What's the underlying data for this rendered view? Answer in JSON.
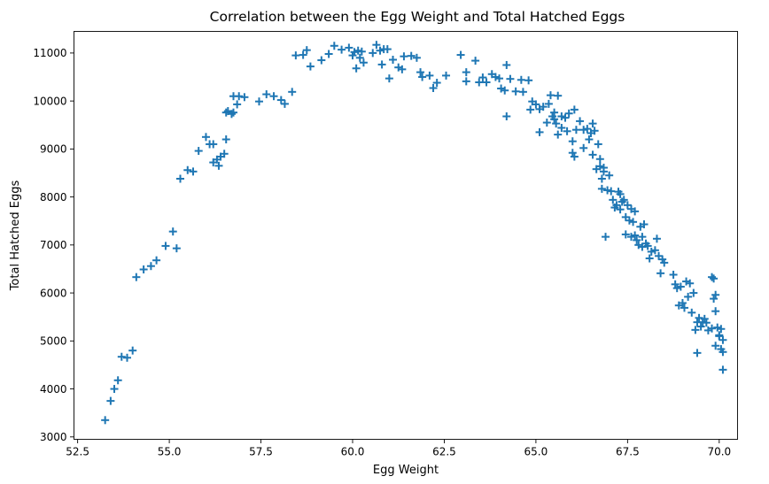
{
  "chart_data": {
    "type": "scatter",
    "title": "Correlation between the Egg Weight and Total Hatched Eggs",
    "xlabel": "Egg Weight",
    "ylabel": "Total Hatched Eggs",
    "marker": "+",
    "color": "#1f77b4",
    "grid": false,
    "legend": false,
    "xlim": [
      52.4,
      70.5
    ],
    "ylim": [
      2950,
      11450
    ],
    "xticks": [
      52.5,
      55.0,
      57.5,
      60.0,
      62.5,
      65.0,
      67.5,
      70.0
    ],
    "xtick_labels": [
      "52.5",
      "55.0",
      "57.5",
      "60.0",
      "62.5",
      "65.0",
      "67.5",
      "70.0"
    ],
    "yticks": [
      3000,
      4000,
      5000,
      6000,
      7000,
      8000,
      9000,
      10000,
      11000
    ],
    "ytick_labels": [
      "3000",
      "4000",
      "5000",
      "6000",
      "7000",
      "8000",
      "9000",
      "10000",
      "11000"
    ],
    "points": [
      [
        53.25,
        3350
      ],
      [
        53.4,
        3750
      ],
      [
        53.5,
        4000
      ],
      [
        53.6,
        4180
      ],
      [
        53.7,
        4670
      ],
      [
        53.85,
        4650
      ],
      [
        54.0,
        4800
      ],
      [
        54.1,
        6330
      ],
      [
        54.3,
        6490
      ],
      [
        54.5,
        6560
      ],
      [
        54.65,
        6680
      ],
      [
        54.9,
        6980
      ],
      [
        55.1,
        7280
      ],
      [
        55.2,
        6930
      ],
      [
        55.3,
        8380
      ],
      [
        55.5,
        8560
      ],
      [
        55.65,
        8530
      ],
      [
        55.8,
        8960
      ],
      [
        56.0,
        9250
      ],
      [
        56.1,
        9100
      ],
      [
        56.2,
        9100
      ],
      [
        56.2,
        8720
      ],
      [
        56.3,
        8780
      ],
      [
        56.35,
        8650
      ],
      [
        56.4,
        8840
      ],
      [
        56.5,
        8900
      ],
      [
        56.55,
        9200
      ],
      [
        56.55,
        9760
      ],
      [
        56.6,
        9790
      ],
      [
        56.7,
        9730
      ],
      [
        56.75,
        9760
      ],
      [
        56.75,
        10100
      ],
      [
        56.85,
        9930
      ],
      [
        56.9,
        10100
      ],
      [
        57.05,
        10080
      ],
      [
        57.45,
        9990
      ],
      [
        57.65,
        10140
      ],
      [
        57.85,
        10100
      ],
      [
        58.05,
        10020
      ],
      [
        58.15,
        9940
      ],
      [
        58.35,
        10190
      ],
      [
        58.45,
        10950
      ],
      [
        58.65,
        10960
      ],
      [
        58.75,
        11060
      ],
      [
        58.85,
        10720
      ],
      [
        59.15,
        10850
      ],
      [
        59.35,
        10980
      ],
      [
        59.5,
        11150
      ],
      [
        59.7,
        11070
      ],
      [
        59.9,
        11110
      ],
      [
        60.0,
        10950
      ],
      [
        60.05,
        11020
      ],
      [
        60.1,
        10680
      ],
      [
        60.15,
        11050
      ],
      [
        60.2,
        10900
      ],
      [
        60.25,
        11030
      ],
      [
        60.3,
        10800
      ],
      [
        60.55,
        11000
      ],
      [
        60.65,
        11170
      ],
      [
        60.75,
        11050
      ],
      [
        60.8,
        10760
      ],
      [
        60.85,
        11080
      ],
      [
        60.95,
        11080
      ],
      [
        61.0,
        10470
      ],
      [
        61.1,
        10860
      ],
      [
        61.25,
        10700
      ],
      [
        61.35,
        10660
      ],
      [
        61.4,
        10930
      ],
      [
        61.6,
        10940
      ],
      [
        61.75,
        10900
      ],
      [
        61.85,
        10600
      ],
      [
        61.9,
        10500
      ],
      [
        62.1,
        10530
      ],
      [
        62.2,
        10270
      ],
      [
        62.3,
        10380
      ],
      [
        62.55,
        10530
      ],
      [
        62.95,
        10960
      ],
      [
        63.1,
        10600
      ],
      [
        63.1,
        10410
      ],
      [
        63.35,
        10840
      ],
      [
        63.45,
        10390
      ],
      [
        63.55,
        10490
      ],
      [
        63.65,
        10390
      ],
      [
        63.8,
        10560
      ],
      [
        63.9,
        10500
      ],
      [
        64.0,
        10470
      ],
      [
        64.05,
        10260
      ],
      [
        64.15,
        10220
      ],
      [
        64.2,
        9680
      ],
      [
        64.2,
        10750
      ],
      [
        64.3,
        10460
      ],
      [
        64.45,
        10200
      ],
      [
        64.6,
        10440
      ],
      [
        64.65,
        10190
      ],
      [
        64.8,
        10430
      ],
      [
        64.85,
        9820
      ],
      [
        64.9,
        9990
      ],
      [
        65.0,
        9930
      ],
      [
        65.1,
        9350
      ],
      [
        65.1,
        9830
      ],
      [
        65.2,
        9880
      ],
      [
        65.3,
        9550
      ],
      [
        65.35,
        9940
      ],
      [
        65.4,
        10120
      ],
      [
        65.45,
        9680
      ],
      [
        65.5,
        9760
      ],
      [
        65.5,
        9620
      ],
      [
        65.55,
        9530
      ],
      [
        65.6,
        9300
      ],
      [
        65.6,
        10110
      ],
      [
        65.7,
        9680
      ],
      [
        65.7,
        9440
      ],
      [
        65.8,
        9650
      ],
      [
        65.85,
        9370
      ],
      [
        65.9,
        9740
      ],
      [
        66.0,
        9160
      ],
      [
        66.0,
        8920
      ],
      [
        66.05,
        8840
      ],
      [
        66.05,
        9820
      ],
      [
        66.1,
        9400
      ],
      [
        66.2,
        9580
      ],
      [
        66.3,
        9400
      ],
      [
        66.3,
        9020
      ],
      [
        66.4,
        9420
      ],
      [
        66.45,
        9200
      ],
      [
        66.5,
        9330
      ],
      [
        66.55,
        9530
      ],
      [
        66.55,
        8880
      ],
      [
        66.6,
        9380
      ],
      [
        66.65,
        8580
      ],
      [
        66.7,
        9100
      ],
      [
        66.75,
        8640
      ],
      [
        66.75,
        8790
      ],
      [
        66.8,
        8380
      ],
      [
        66.8,
        8170
      ],
      [
        66.85,
        8610
      ],
      [
        66.85,
        8530
      ],
      [
        66.9,
        7170
      ],
      [
        66.95,
        8140
      ],
      [
        67.0,
        8450
      ],
      [
        67.05,
        8120
      ],
      [
        67.1,
        7940
      ],
      [
        67.15,
        7780
      ],
      [
        67.2,
        7830
      ],
      [
        67.25,
        8110
      ],
      [
        67.3,
        7740
      ],
      [
        67.3,
        8060
      ],
      [
        67.35,
        7900
      ],
      [
        67.4,
        7940
      ],
      [
        67.45,
        7220
      ],
      [
        67.45,
        7580
      ],
      [
        67.5,
        7830
      ],
      [
        67.55,
        7510
      ],
      [
        67.6,
        7750
      ],
      [
        67.6,
        7170
      ],
      [
        67.65,
        7480
      ],
      [
        67.7,
        7700
      ],
      [
        67.7,
        7200
      ],
      [
        67.75,
        7100
      ],
      [
        67.8,
        7000
      ],
      [
        67.85,
        7380
      ],
      [
        67.9,
        7170
      ],
      [
        67.9,
        6960
      ],
      [
        67.95,
        7430
      ],
      [
        68.0,
        7030
      ],
      [
        68.05,
        6980
      ],
      [
        68.1,
        6720
      ],
      [
        68.15,
        6860
      ],
      [
        68.25,
        6890
      ],
      [
        68.3,
        7130
      ],
      [
        68.35,
        6770
      ],
      [
        68.4,
        6410
      ],
      [
        68.45,
        6700
      ],
      [
        68.5,
        6630
      ],
      [
        68.75,
        6380
      ],
      [
        68.8,
        6180
      ],
      [
        68.85,
        6100
      ],
      [
        68.9,
        5740
      ],
      [
        68.95,
        6130
      ],
      [
        69.0,
        5790
      ],
      [
        69.05,
        5690
      ],
      [
        69.1,
        6240
      ],
      [
        69.15,
        5920
      ],
      [
        69.2,
        6200
      ],
      [
        69.25,
        5590
      ],
      [
        69.3,
        6000
      ],
      [
        69.35,
        5230
      ],
      [
        69.4,
        5390
      ],
      [
        69.4,
        4750
      ],
      [
        69.45,
        5480
      ],
      [
        69.5,
        5300
      ],
      [
        69.55,
        5390
      ],
      [
        69.6,
        5460
      ],
      [
        69.65,
        5380
      ],
      [
        69.7,
        5220
      ],
      [
        69.8,
        5260
      ],
      [
        69.85,
        5880
      ],
      [
        69.85,
        6300
      ],
      [
        69.9,
        5960
      ],
      [
        69.9,
        5620
      ],
      [
        69.9,
        4900
      ],
      [
        69.95,
        5280
      ],
      [
        70.0,
        5100
      ],
      [
        70.05,
        5250
      ],
      [
        70.05,
        4830
      ],
      [
        70.1,
        4770
      ],
      [
        70.1,
        5020
      ],
      [
        70.1,
        4400
      ],
      [
        69.8,
        6330
      ],
      [
        70.0,
        5120
      ]
    ]
  }
}
